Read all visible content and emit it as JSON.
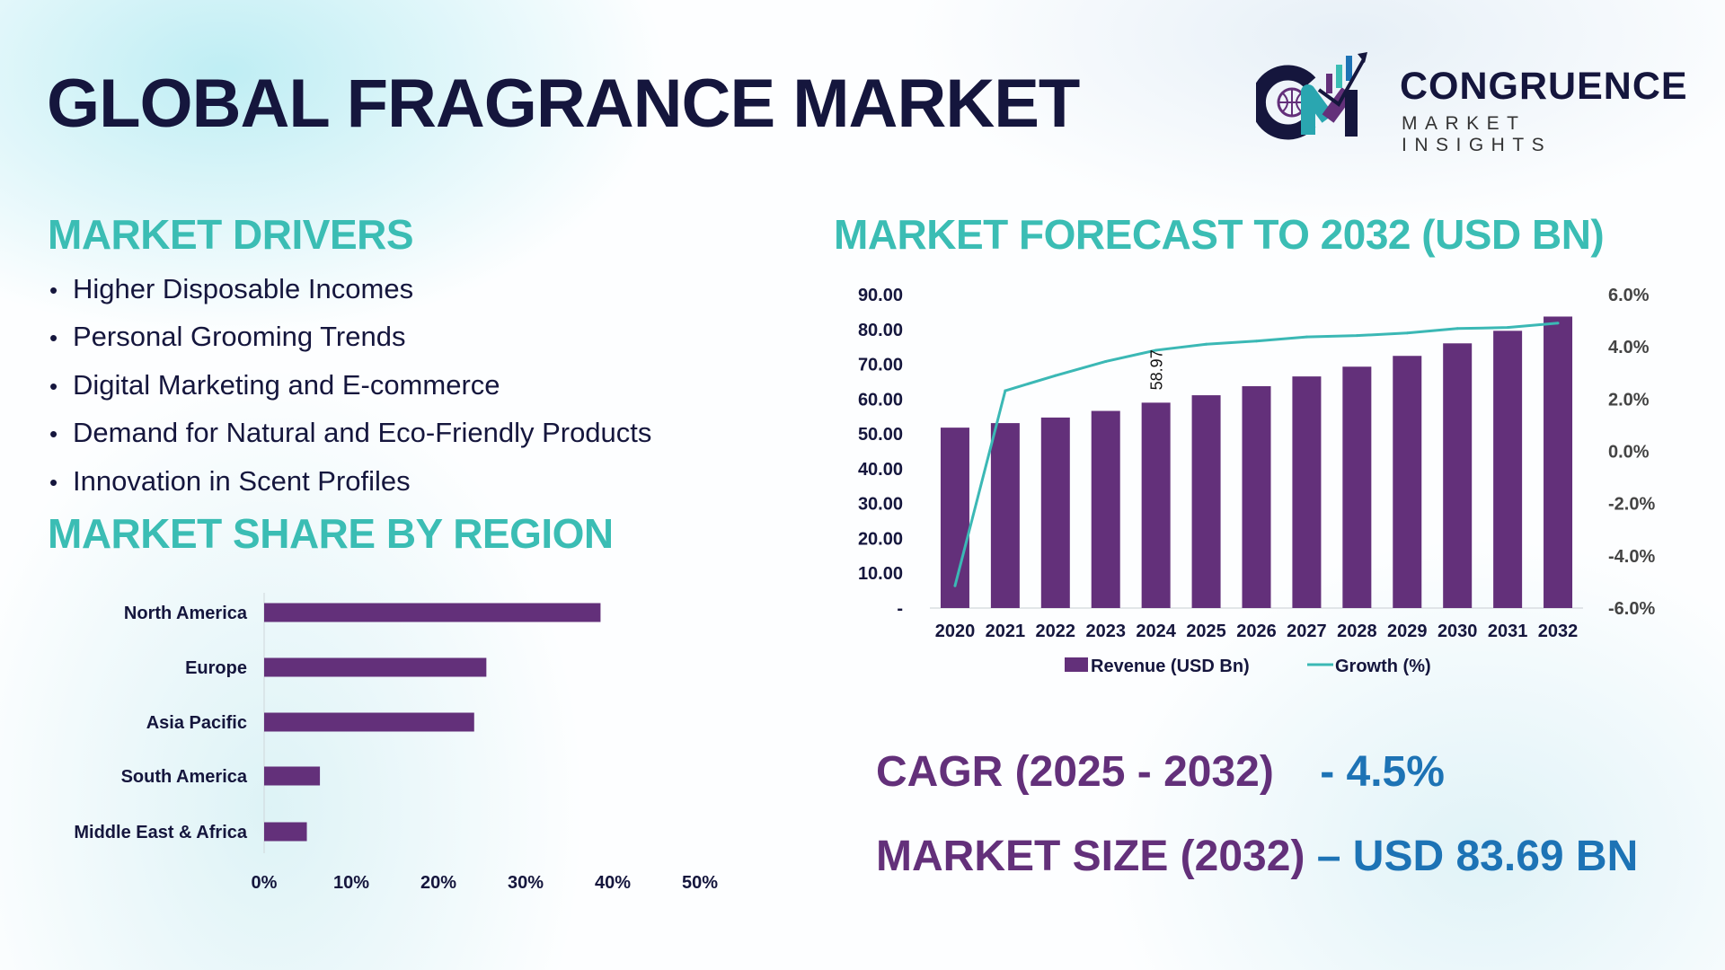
{
  "header": {
    "title": "GLOBAL FRAGRANCE MARKET"
  },
  "logo": {
    "brand": "CONGRUENCE",
    "tagline": "MARKET INSIGHTS"
  },
  "drivers": {
    "title": "MARKET DRIVERS",
    "items": [
      "Higher Disposable Incomes",
      "Personal Grooming Trends",
      "Digital Marketing and E-commerce",
      "Demand for Natural and Eco-Friendly Products",
      "Innovation in Scent Profiles"
    ]
  },
  "region": {
    "title": "MARKET SHARE BY REGION"
  },
  "forecast": {
    "title": "MARKET FORECAST TO 2032 (USD BN)"
  },
  "kpis": {
    "cagr_label": "CAGR (2025 - 2032)",
    "cagr_value": "- 4.5%",
    "size_label": "MARKET SIZE (2032)",
    "size_value": "– USD 83.69 BN"
  },
  "colors": {
    "bar": "#63307a",
    "line": "#3bb8b5",
    "heading": "#3bbdb4",
    "title": "#15163d",
    "value": "#1d73b5"
  },
  "chart_data": [
    {
      "type": "bar",
      "orientation": "horizontal",
      "categories": [
        "North America",
        "Europe",
        "Asia Pacific",
        "South America",
        "Middle East & Africa"
      ],
      "values": [
        38.6,
        25.5,
        24.1,
        6.4,
        4.9
      ],
      "xlim": [
        0,
        50
      ],
      "xticks": [
        "0%",
        "10%",
        "20%",
        "30%",
        "40%",
        "50%"
      ],
      "grid": false
    },
    {
      "type": "bar+line",
      "categories": [
        "2020",
        "2021",
        "2022",
        "2023",
        "2024",
        "2025",
        "2026",
        "2027",
        "2028",
        "2029",
        "2030",
        "2031",
        "2032"
      ],
      "series": [
        {
          "name": "Revenue (USD Bn)",
          "type": "bar",
          "axis": "left",
          "values": [
            51.8,
            53.1,
            54.7,
            56.6,
            58.97,
            61.1,
            63.7,
            66.5,
            69.3,
            72.4,
            76.0,
            79.6,
            83.69
          ]
        },
        {
          "name": "Growth (%)",
          "type": "line",
          "axis": "right",
          "values": [
            -5.15,
            2.32,
            2.9,
            3.44,
            3.87,
            4.1,
            4.22,
            4.38,
            4.43,
            4.53,
            4.7,
            4.74,
            4.91
          ]
        }
      ],
      "data_labels": [
        {
          "category": "2024",
          "text": "58.97"
        }
      ],
      "ylim_left": [
        0,
        90
      ],
      "yticks_left": [
        "-",
        "10.00",
        "20.00",
        "30.00",
        "40.00",
        "50.00",
        "60.00",
        "70.00",
        "80.00",
        "90.00"
      ],
      "ylim_right": [
        -6,
        6
      ],
      "yticks_right": [
        "-6.0%",
        "-4.0%",
        "-2.0%",
        "0.0%",
        "2.0%",
        "4.0%",
        "6.0%"
      ],
      "legend": "bottom",
      "grid": false
    }
  ]
}
